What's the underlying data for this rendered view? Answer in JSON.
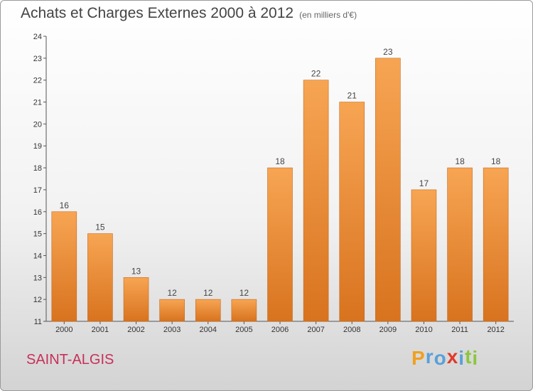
{
  "chart_data": {
    "type": "bar",
    "title": "Achats et Charges Externes 2000 à 2012",
    "subtitle": "(en milliers d'€)",
    "categories": [
      "2000",
      "2001",
      "2002",
      "2003",
      "2004",
      "2005",
      "2006",
      "2007",
      "2008",
      "2009",
      "2010",
      "2011",
      "2012"
    ],
    "values": [
      16,
      15,
      13,
      12,
      12,
      12,
      18,
      22,
      21,
      23,
      17,
      18,
      18
    ],
    "ylim": [
      11,
      24
    ],
    "yticks": [
      11,
      12,
      13,
      14,
      15,
      16,
      17,
      18,
      19,
      20,
      21,
      22,
      23,
      24
    ],
    "grid": false,
    "bar_color": "#f0923c"
  },
  "commune": "SAINT-ALGIS",
  "logo": {
    "letters": [
      "P",
      "r",
      "o",
      "x",
      "i",
      "t",
      "i"
    ],
    "colors": [
      "#f0a020",
      "#5aa0d8",
      "#5aa0d8",
      "#e03a2a",
      "#5aa0d8",
      "#8cc63f",
      "#8cc63f"
    ]
  }
}
